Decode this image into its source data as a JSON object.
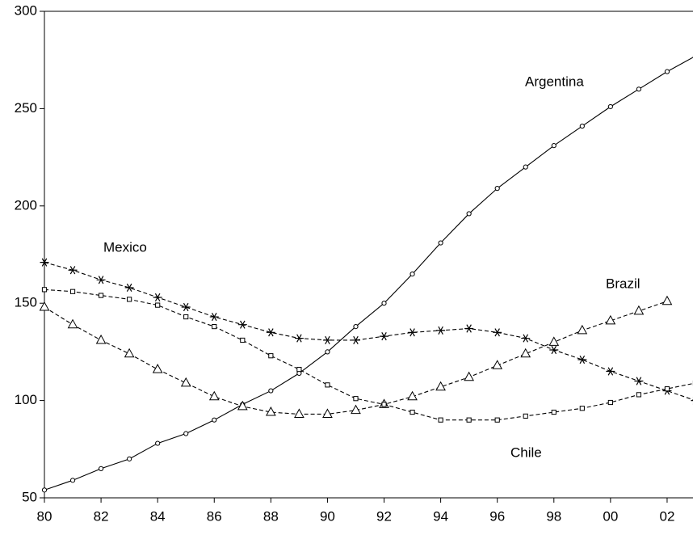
{
  "chart_data": {
    "type": "line",
    "x": [
      1980,
      1981,
      1982,
      1983,
      1984,
      1985,
      1986,
      1987,
      1988,
      1989,
      1990,
      1991,
      1992,
      1993,
      1994,
      1995,
      1996,
      1997,
      1998,
      1999,
      2000,
      2001,
      2002,
      2003
    ],
    "series": [
      {
        "name": "Argentina",
        "color": "#000000",
        "line_style": "solid",
        "marker": "circle",
        "values": [
          54,
          59,
          65,
          70,
          78,
          83,
          90,
          98,
          105,
          114,
          125,
          138,
          150,
          165,
          181,
          196,
          209,
          220,
          231,
          241,
          251,
          260,
          269,
          277
        ]
      },
      {
        "name": "Mexico",
        "color": "#000000",
        "line_style": "dashed",
        "marker": "asterisk",
        "values": [
          171,
          167,
          162,
          158,
          153,
          148,
          143,
          139,
          135,
          132,
          131,
          131,
          133,
          135,
          136,
          137,
          135,
          132,
          126,
          121,
          115,
          110,
          105,
          100
        ]
      },
      {
        "name": "Brazil",
        "color": "#000000",
        "line_style": "dashed",
        "marker": "triangle",
        "values": [
          148,
          139,
          131,
          124,
          116,
          109,
          102,
          97,
          94,
          93,
          93,
          95,
          98,
          102,
          107,
          112,
          118,
          124,
          130,
          136,
          141,
          146,
          151,
          null
        ]
      },
      {
        "name": "Chile",
        "color": "#000000",
        "line_style": "dashed",
        "marker": "square",
        "values": [
          157,
          156,
          154,
          152,
          149,
          143,
          138,
          131,
          123,
          116,
          108,
          101,
          98,
          94,
          90,
          90,
          90,
          92,
          94,
          96,
          99,
          103,
          106,
          109
        ]
      }
    ],
    "xlim": [
      1980,
      2003
    ],
    "ylim": [
      50,
      300
    ],
    "xticks": [
      {
        "value": 1980,
        "label": "80"
      },
      {
        "value": 1982,
        "label": "82"
      },
      {
        "value": 1984,
        "label": "84"
      },
      {
        "value": 1986,
        "label": "86"
      },
      {
        "value": 1988,
        "label": "88"
      },
      {
        "value": 1990,
        "label": "90"
      },
      {
        "value": 1992,
        "label": "92"
      },
      {
        "value": 1994,
        "label": "94"
      },
      {
        "value": 1996,
        "label": "96"
      },
      {
        "value": 1998,
        "label": "98"
      },
      {
        "value": 2000,
        "label": "00"
      },
      {
        "value": 2002,
        "label": "02"
      }
    ],
    "yticks": [
      50,
      100,
      150,
      200,
      250,
      300
    ],
    "grid": false
  }
}
